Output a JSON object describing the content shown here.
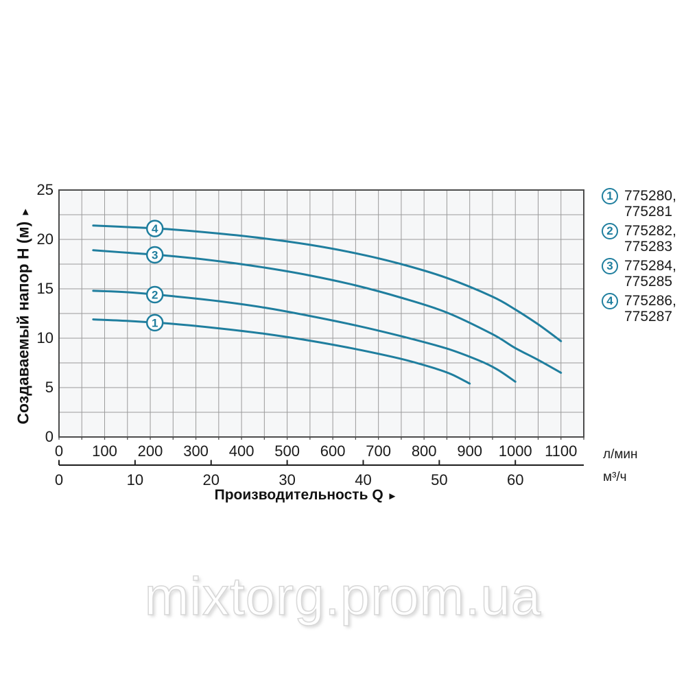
{
  "watermark": {
    "text": "mixtorg.prom.ua"
  },
  "chart": {
    "y_title": "Создаваемый напор Н (м)",
    "y_arrow": "►",
    "x_title": "Производительность Q",
    "x_arrow": "►",
    "unit_lmin": "л/мин",
    "unit_m3h": "м³/ч"
  },
  "legend": {
    "items": [
      {
        "number": "1",
        "line1": "775280,",
        "line2": "775281"
      },
      {
        "number": "2",
        "line1": "775282,",
        "line2": "775283"
      },
      {
        "number": "3",
        "line1": "775284,",
        "line2": "775285"
      },
      {
        "number": "4",
        "line1": "775286,",
        "line2": "775287"
      }
    ]
  },
  "chart_data": {
    "type": "line",
    "title": "",
    "xlabel": "Производительность Q",
    "ylabel": "Создаваемый напор Н (м)",
    "x_unit_primary": "л/мин",
    "x_unit_secondary": "м³/ч",
    "xlim_lmin": [
      0,
      1150
    ],
    "ylim": [
      0,
      25
    ],
    "x_ticks_lmin": [
      0,
      100,
      200,
      300,
      400,
      500,
      600,
      700,
      800,
      900,
      1000,
      1100
    ],
    "x_ticks_m3h": [
      0,
      10,
      20,
      30,
      40,
      50,
      60
    ],
    "y_ticks": [
      0,
      5,
      10,
      15,
      20,
      25
    ],
    "grid": {
      "x_step": 50,
      "y_step": 2.5,
      "on": true
    },
    "legend_position": "right",
    "line_color": "#1f7e9e",
    "marker_q": 210,
    "series": [
      {
        "label": "1",
        "codes": "775280, 775281",
        "points": [
          [
            75,
            11.9
          ],
          [
            150,
            11.75
          ],
          [
            250,
            11.45
          ],
          [
            350,
            11.0
          ],
          [
            450,
            10.45
          ],
          [
            550,
            9.75
          ],
          [
            650,
            8.9
          ],
          [
            750,
            7.9
          ],
          [
            820,
            7.0
          ],
          [
            860,
            6.35
          ],
          [
            900,
            5.4
          ]
        ]
      },
      {
        "label": "2",
        "codes": "775282, 775283",
        "points": [
          [
            75,
            14.8
          ],
          [
            150,
            14.65
          ],
          [
            250,
            14.25
          ],
          [
            350,
            13.75
          ],
          [
            450,
            13.1
          ],
          [
            550,
            12.25
          ],
          [
            650,
            11.3
          ],
          [
            750,
            10.2
          ],
          [
            850,
            8.95
          ],
          [
            920,
            7.75
          ],
          [
            960,
            6.85
          ],
          [
            1000,
            5.6
          ]
        ]
      },
      {
        "label": "3",
        "codes": "775284, 775285",
        "points": [
          [
            75,
            18.9
          ],
          [
            150,
            18.65
          ],
          [
            250,
            18.3
          ],
          [
            350,
            17.8
          ],
          [
            450,
            17.15
          ],
          [
            550,
            16.35
          ],
          [
            650,
            15.35
          ],
          [
            750,
            14.1
          ],
          [
            850,
            12.6
          ],
          [
            950,
            10.4
          ],
          [
            1000,
            9.0
          ],
          [
            1050,
            7.8
          ],
          [
            1100,
            6.5
          ]
        ]
      },
      {
        "label": "4",
        "codes": "775286, 775287",
        "points": [
          [
            75,
            21.4
          ],
          [
            150,
            21.25
          ],
          [
            250,
            21.0
          ],
          [
            350,
            20.6
          ],
          [
            450,
            20.1
          ],
          [
            550,
            19.45
          ],
          [
            650,
            18.6
          ],
          [
            750,
            17.5
          ],
          [
            850,
            16.1
          ],
          [
            950,
            14.2
          ],
          [
            1000,
            12.9
          ],
          [
            1050,
            11.4
          ],
          [
            1100,
            9.7
          ]
        ]
      }
    ]
  }
}
